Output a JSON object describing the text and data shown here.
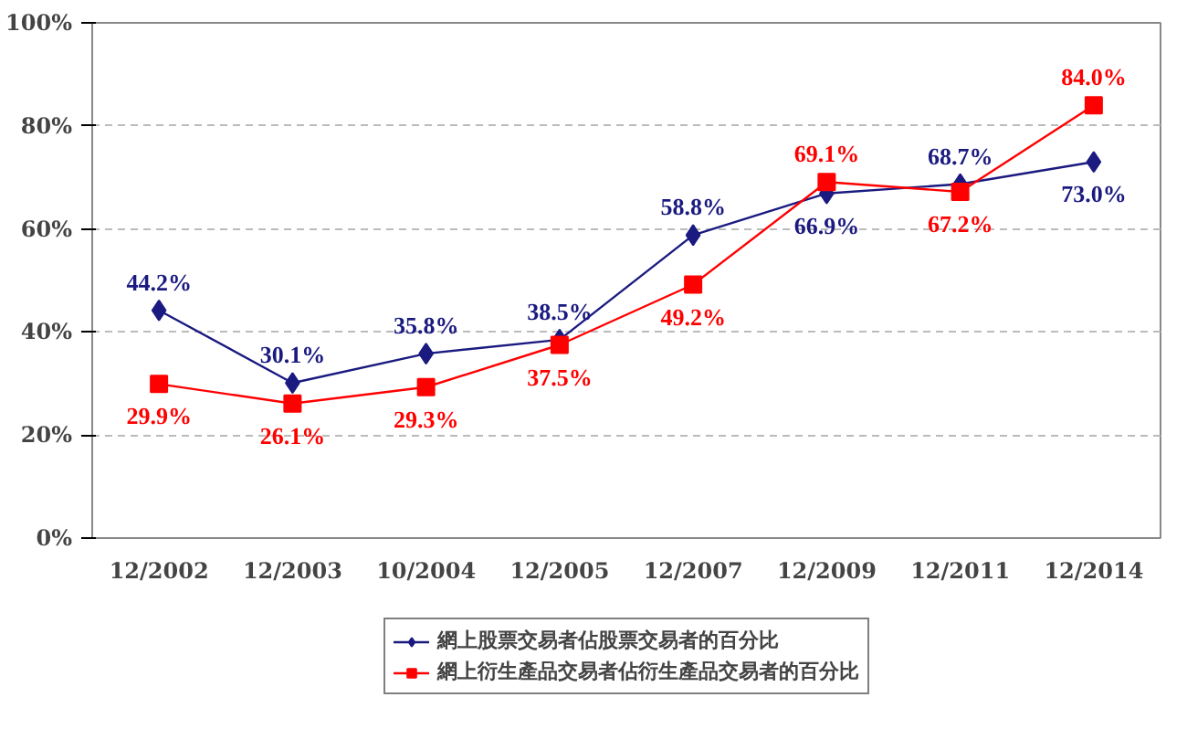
{
  "chart_data": {
    "type": "line",
    "categories": [
      "12/2002",
      "12/2003",
      "10/2004",
      "12/2005",
      "12/2007",
      "12/2009",
      "12/2011",
      "12/2014"
    ],
    "series": [
      {
        "name": "網上股票交易者佔股票交易者的百分比",
        "color": "#1a1a80",
        "marker": "diamond",
        "values": [
          44.2,
          30.1,
          35.8,
          38.5,
          58.8,
          66.9,
          68.7,
          73.0
        ],
        "value_labels": [
          "44.2%",
          "30.1%",
          "35.8%",
          "38.5%",
          "58.8%",
          "66.9%",
          "68.7%",
          "73.0%"
        ]
      },
      {
        "name": "網上衍生產品交易者佔衍生產品交易者的百分比",
        "color": "#ff0000",
        "marker": "square",
        "values": [
          29.9,
          26.1,
          29.3,
          37.5,
          49.2,
          69.1,
          67.2,
          84.0
        ],
        "value_labels": [
          "29.9%",
          "26.1%",
          "29.3%",
          "37.5%",
          "49.2%",
          "69.1%",
          "67.2%",
          "84.0%"
        ]
      }
    ],
    "ylim": [
      0,
      100
    ],
    "yticks": [
      {
        "value": 0,
        "label": "0%"
      },
      {
        "value": 20,
        "label": "20%"
      },
      {
        "value": 40,
        "label": "40%"
      },
      {
        "value": 60,
        "label": "60%"
      },
      {
        "value": 80,
        "label": "80%"
      },
      {
        "value": 100,
        "label": "100%"
      }
    ],
    "grid": "y",
    "legend": "bottom",
    "line_style": "solid"
  }
}
